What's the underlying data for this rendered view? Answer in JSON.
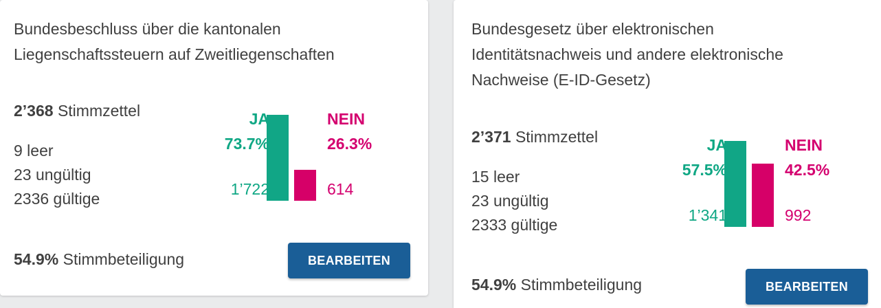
{
  "cards": [
    {
      "title_lines": [
        "Bundesbeschluss über die kantonalen",
        "Liegenschaftssteuern auf Zweitliegenschaften"
      ],
      "ballots_count": "2’368",
      "ballots_label": "Stimmzettel",
      "blank": "9 leer",
      "invalid": "23 ungültig",
      "valid": "2336 gültige",
      "yes_label": "JA",
      "yes_percent": "73.7%",
      "yes_count": "1’722",
      "yes_share": 73.7,
      "no_label": "NEIN",
      "no_percent": "26.3%",
      "no_count": "614",
      "no_share": 26.3,
      "turnout_value": "54.9%",
      "turnout_label": "Stimmbeteiligung",
      "button_label": "BEARBEITEN"
    },
    {
      "title_lines": [
        "Bundesgesetz über elektronischen",
        "Identitätsnachweis und andere elektronische",
        "Nachweise (E-ID-Gesetz)"
      ],
      "ballots_count": "2’371",
      "ballots_label": "Stimmzettel",
      "blank": "15 leer",
      "invalid": "23 ungültig",
      "valid": "2333 gültige",
      "yes_label": "JA",
      "yes_percent": "57.5%",
      "yes_count": "1’341",
      "yes_share": 57.5,
      "no_label": "NEIN",
      "no_percent": "42.5%",
      "no_count": "992",
      "no_share": 42.5,
      "turnout_value": "54.9%",
      "turnout_label": "Stimmbeteiligung",
      "button_label": "BEARBEITEN"
    }
  ],
  "colors": {
    "yes": "#11a686",
    "no": "#d60068",
    "button": "#1a5e97",
    "background": "#eaebec"
  }
}
